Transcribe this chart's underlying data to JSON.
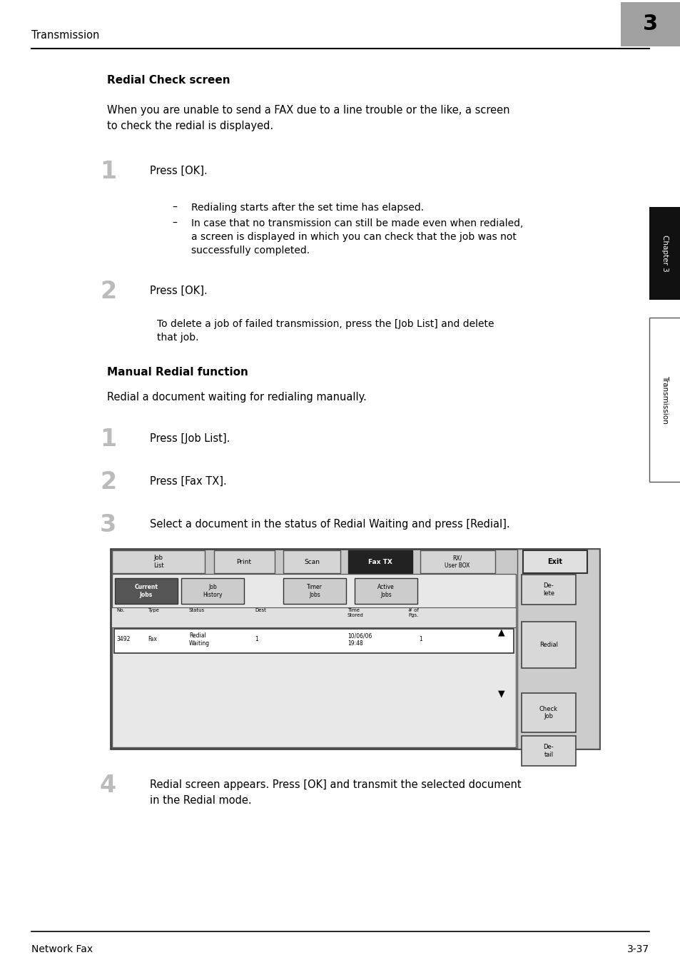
{
  "page_width": 9.54,
  "page_height": 13.52,
  "bg_color": "#ffffff",
  "header_text": "Transmission",
  "header_chapter_num": "3",
  "header_chapter_bg": "#a0a0a0",
  "footer_left": "Network Fax",
  "footer_right": "3-37",
  "section1_title": "Redial Check screen",
  "section1_intro_l1": "When you are unable to send a FAX due to a line trouble or the like, a screen",
  "section1_intro_l2": "to check the redial is displayed.",
  "step1_num": "1",
  "step1_text": "Press [OK].",
  "step1_sub1": "Redialing starts after the set time has elapsed.",
  "step1_sub2_l1": "In case that no transmission can still be made even when redialed,",
  "step1_sub2_l2": "a screen is displayed in which you can check that the job was not",
  "step1_sub2_l3": "successfully completed.",
  "step2_num": "2",
  "step2_text": "Press [OK].",
  "step2_sub_l1": "To delete a job of failed transmission, press the [Job List] and delete",
  "step2_sub_l2": "that job.",
  "section2_title": "Manual Redial function",
  "section2_intro": "Redial a document waiting for redialing manually.",
  "mstep1_num": "1",
  "mstep1_text": "Press [Job List].",
  "mstep2_num": "2",
  "mstep2_text": "Press [Fax TX].",
  "mstep3_num": "3",
  "mstep3_text": "Select a document in the status of Redial Waiting and press [Redial].",
  "mstep4_num": "4",
  "mstep4_text_l1": "Redial screen appears. Press [OK] and transmit the selected document",
  "mstep4_text_l2": "in the Redial mode.",
  "right_tab_chapter": "Chapter 3",
  "right_tab_transmission": "Transmission",
  "tab_chapter_bg": "#111111",
  "tab_chapter_color": "#ffffff",
  "tab_trans_bg": "#ffffff",
  "tab_trans_color": "#000000"
}
